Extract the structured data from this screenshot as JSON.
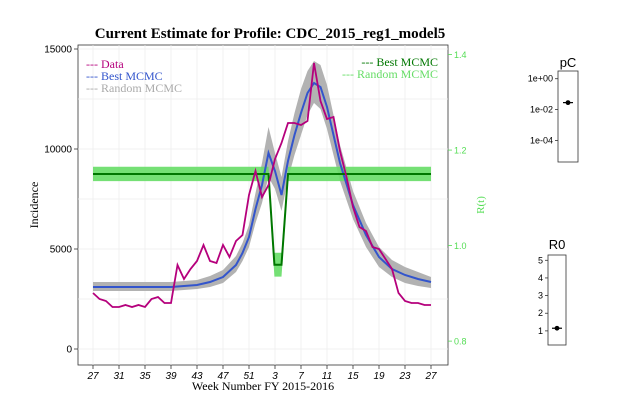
{
  "chart_data": [
    {
      "type": "line",
      "title": "Current Estimate for Profile: CDC_2015_reg1_model5",
      "xlabel": "Week Number FY 2015-2016",
      "ylabel": "Incidence",
      "y2label": "R(t)",
      "x_tick_labels": [
        "27",
        "31",
        "35",
        "39",
        "43",
        "47",
        "51",
        "3",
        "7",
        "11",
        "15",
        "19",
        "23",
        "27"
      ],
      "y_ticks": [
        "0",
        "5000",
        "10000",
        "15000"
      ],
      "y2_ticks": [
        "0.8",
        "1.0",
        "1.2",
        "1.4"
      ],
      "xlim": [
        0,
        52
      ],
      "ylim": [
        -800,
        15200
      ],
      "y2lim": [
        0.75,
        1.42
      ],
      "grid": true,
      "legend_left": [
        {
          "name": "Data",
          "prefix": "---",
          "color": "#b5007c"
        },
        {
          "name": "Best MCMC",
          "prefix": "---",
          "color": "#3355cc"
        },
        {
          "name": "Random MCMC",
          "prefix": "---",
          "color": "#aaaaaa"
        }
      ],
      "legend_right": [
        {
          "name": "Best MCMC",
          "prefix": "---",
          "color": "#007700"
        },
        {
          "name": "Random MCMC",
          "prefix": "---",
          "color": "#66dd66"
        }
      ],
      "series": [
        {
          "name": "Data",
          "color": "#b5007c",
          "x": [
            0,
            1,
            2,
            3,
            4,
            5,
            6,
            7,
            8,
            9,
            10,
            11,
            12,
            13,
            14,
            15,
            16,
            17,
            18,
            19,
            20,
            21,
            22,
            23,
            24,
            25,
            26,
            27,
            28,
            29,
            30,
            31,
            32,
            33,
            34,
            35,
            36,
            37,
            38,
            39,
            40,
            41,
            42,
            43,
            44,
            45,
            46,
            47,
            48,
            49,
            50,
            51,
            52
          ],
          "values": [
            2800,
            2500,
            2400,
            2100,
            2100,
            2200,
            2100,
            2200,
            2100,
            2500,
            2600,
            2300,
            2300,
            4200,
            3500,
            4000,
            4400,
            5200,
            4400,
            4300,
            5200,
            4600,
            5400,
            5700,
            7700,
            8900,
            7600,
            8200,
            9500,
            10300,
            11300,
            11300,
            11200,
            11400,
            14300,
            12400,
            11500,
            11600,
            9900,
            8600,
            7100,
            6100,
            5900,
            5100,
            5000,
            4500,
            4000,
            2800,
            2400,
            2300,
            2300,
            2200,
            2200
          ]
        },
        {
          "name": "Best MCMC",
          "color": "#3355cc",
          "x": [
            0,
            4,
            8,
            12,
            16,
            18,
            20,
            22,
            23,
            24,
            25,
            26,
            27,
            28,
            29,
            30,
            31,
            32,
            33,
            34,
            35,
            36,
            37,
            38,
            40,
            42,
            44,
            46,
            48,
            50,
            52
          ],
          "values": [
            3100,
            3100,
            3100,
            3100,
            3200,
            3350,
            3600,
            4200,
            4800,
            5600,
            7000,
            8200,
            9800,
            8900,
            7700,
            9400,
            10700,
            11800,
            12800,
            13300,
            13100,
            12100,
            10700,
            9300,
            7200,
            5700,
            4600,
            4000,
            3700,
            3500,
            3350
          ]
        },
        {
          "name": "Random MCMC",
          "color": "#aaaaaa",
          "x": [
            0,
            4,
            8,
            12,
            16,
            18,
            20,
            22,
            23,
            24,
            25,
            26,
            27,
            28,
            29,
            30,
            31,
            32,
            33,
            34,
            35,
            36,
            37,
            38,
            40,
            42,
            44,
            46,
            48,
            50,
            52
          ],
          "lower": [
            2900,
            2900,
            2900,
            2900,
            3000,
            3100,
            3300,
            3850,
            4400,
            5100,
            6300,
            7300,
            8600,
            8000,
            6900,
            8500,
            9700,
            10700,
            11700,
            12300,
            12000,
            11000,
            9700,
            8400,
            6500,
            5100,
            4100,
            3600,
            3300,
            3150,
            3050
          ],
          "upper": [
            3350,
            3350,
            3350,
            3350,
            3450,
            3650,
            3950,
            4650,
            5300,
            6200,
            7800,
            9300,
            11100,
            9800,
            8600,
            10400,
            11800,
            13000,
            13900,
            14400,
            14200,
            13200,
            11700,
            10200,
            7900,
            6300,
            5100,
            4450,
            4100,
            3850,
            3600
          ]
        },
        {
          "name": "Best MCMC R(t)",
          "axis": "y2",
          "color": "#007700",
          "x": [
            0,
            26,
            27,
            27.9,
            28.1,
            29,
            30,
            52
          ],
          "values": [
            1.15,
            1.15,
            1.15,
            0.96,
            0.96,
            0.96,
            1.15,
            1.15
          ]
        },
        {
          "name": "Random MCMC R(t)",
          "axis": "y2",
          "color": "#66dd66",
          "x": [
            0,
            26,
            27,
            27.9,
            28.1,
            29,
            30,
            52
          ],
          "lower": [
            1.135,
            1.135,
            1.135,
            0.935,
            0.935,
            0.935,
            1.135,
            1.135
          ],
          "upper": [
            1.165,
            1.165,
            1.165,
            0.985,
            0.985,
            0.985,
            1.165,
            1.165
          ]
        }
      ]
    },
    {
      "type": "scatter",
      "title": "pC",
      "scale": "log",
      "y_ticks": [
        "1e+00",
        "1e-02",
        "1e-04"
      ],
      "y_tick_values": [
        0,
        -2,
        -4
      ],
      "ylim": [
        -5.4,
        0.5
      ],
      "values": [
        -1.55
      ]
    },
    {
      "type": "scatter",
      "title": "R0",
      "y_ticks": [
        "1",
        "2",
        "3",
        "4",
        "5"
      ],
      "y_tick_values": [
        1,
        2,
        3,
        4,
        5
      ],
      "ylim": [
        0.2,
        5.3
      ],
      "values": [
        1.15
      ]
    }
  ]
}
